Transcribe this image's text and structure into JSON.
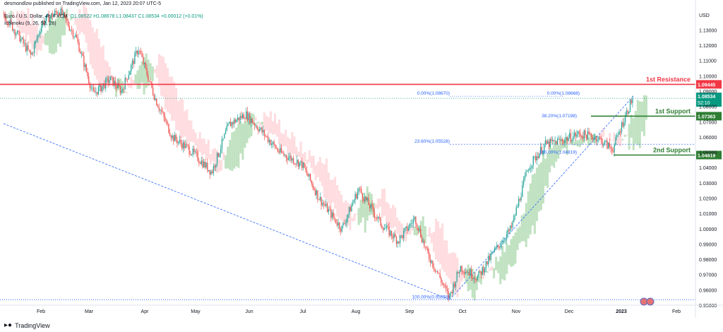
{
  "header": {
    "publisher_line": "desmondlzw published on TradingView.com, Jan 12, 2023 20:07 UTC-5",
    "symbol": "Euro / U.S. Dollar, 4h, FXCM",
    "ohlc": "O1.08522  H1.08678  L1.08437  C1.08534  +0.00012 (+0.01%)",
    "indicator": "Ichimoku (9, 26, 52, 26)"
  },
  "footer": {
    "brand": "TradingView",
    "logo": "tv-logo-icon"
  },
  "colors": {
    "bull": "#26a69a",
    "bear": "#ef5350",
    "resistance": "#f23645",
    "support": "#2e7d32",
    "fib": "#2962ff",
    "cloud_bull": "#a5d6a7",
    "cloud_bear": "#ffcdd2",
    "price_label": "#089981"
  },
  "chart_data": {
    "type": "candlestick",
    "ylabel": "USD",
    "ylim": [
      0.95,
      1.145
    ],
    "y_ticks": [
      "1.13000",
      "1.12000",
      "1.11000",
      "1.10000",
      "1.09000",
      "1.08000",
      "1.07000",
      "1.06000",
      "1.05000",
      "1.04000",
      "1.03000",
      "1.02000",
      "1.01000",
      "1.00000",
      "0.99000",
      "0.98000",
      "0.97000",
      "0.96000",
      "0.95000"
    ],
    "x_ticks": [
      "Feb",
      "Mar",
      "Apr",
      "May",
      "Jun",
      "Jul",
      "Aug",
      "Sep",
      "Oct",
      "Nov",
      "Dec",
      "2023",
      "Feb"
    ],
    "price_path": [
      [
        0,
        1.141
      ],
      [
        0.03,
        1.125
      ],
      [
        0.05,
        1.113
      ],
      [
        0.07,
        1.135
      ],
      [
        0.1,
        1.143
      ],
      [
        0.13,
        1.125
      ],
      [
        0.16,
        1.088
      ],
      [
        0.19,
        1.098
      ],
      [
        0.21,
        1.09
      ],
      [
        0.24,
        1.118
      ],
      [
        0.27,
        1.085
      ],
      [
        0.3,
        1.06
      ],
      [
        0.33,
        1.052
      ],
      [
        0.37,
        1.037
      ],
      [
        0.4,
        1.068
      ],
      [
        0.43,
        1.075
      ],
      [
        0.46,
        1.063
      ],
      [
        0.49,
        1.05
      ],
      [
        0.53,
        1.042
      ],
      [
        0.56,
        1.02
      ],
      [
        0.6,
        1.0
      ],
      [
        0.63,
        1.026
      ],
      [
        0.67,
        1.003
      ],
      [
        0.7,
        0.992
      ],
      [
        0.73,
        1.007
      ],
      [
        0.75,
        0.985
      ],
      [
        0.77,
        0.971
      ],
      [
        0.79,
        0.955
      ],
      [
        0.81,
        0.975
      ],
      [
        0.84,
        0.968
      ],
      [
        0.87,
        0.985
      ],
      [
        0.9,
        1.0
      ],
      [
        0.93,
        1.04
      ],
      [
        0.96,
        1.055
      ],
      [
        0.99,
        1.058
      ],
      [
        1.02,
        1.062
      ],
      [
        1.05,
        1.06
      ],
      [
        1.08,
        1.052
      ],
      [
        1.1,
        1.072
      ],
      [
        1.115,
        1.0853
      ]
    ],
    "levels": [
      {
        "label": "1st Resistance",
        "value": 1.09445,
        "price": "1.09445",
        "color": "#f23645"
      },
      {
        "label": "1st Support",
        "value": 1.07363,
        "price": "1.07363",
        "color": "#2e7d32"
      },
      {
        "label": "2nd Support",
        "value": 1.04819,
        "price": "1.04819",
        "color": "#2e7d32"
      }
    ],
    "current_price": {
      "price": "1.08534",
      "countdown": "52:10",
      "value": 1.08534
    },
    "fib_labels": [
      {
        "text": "0.00%(1.08670)",
        "value": 1.0867
      },
      {
        "text": "23.60%(1.05528)",
        "value": 1.05528
      },
      {
        "text": "100.00%(0.95358)",
        "value": 0.95358
      },
      {
        "text": "0.00%(1.08668)",
        "value": 1.08668
      },
      {
        "text": "38.20%(1.07198)",
        "value": 1.07198
      },
      {
        "text": "100.00%(1.04819)",
        "value": 1.04819
      }
    ],
    "grid": false,
    "legend": "none"
  }
}
